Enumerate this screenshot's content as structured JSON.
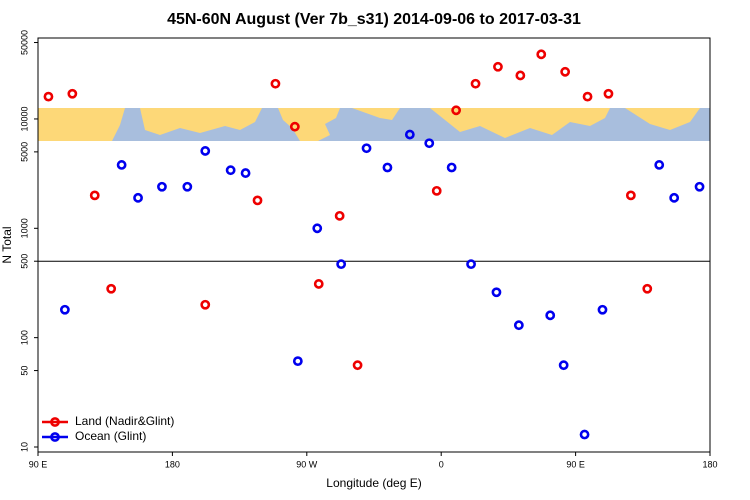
{
  "chart_data": {
    "type": "scatter",
    "title": "45N-60N August (Ver 7b_s31)   2014-09-06 to 2017-03-31",
    "x_label": "Longitude (deg E)",
    "y_label": "N Total",
    "xlim": [
      90,
      540
    ],
    "ylim": [
      9,
      55000
    ],
    "log_y": true,
    "hline": 500,
    "legend": "lower left",
    "xticks": [
      {
        "value": 90,
        "label": "90 E"
      },
      {
        "value": 180,
        "label": "180"
      },
      {
        "value": 270,
        "label": "90 W"
      },
      {
        "value": 360,
        "label": "0"
      },
      {
        "value": 450,
        "label": "90 E"
      },
      {
        "value": 540,
        "label": "180"
      }
    ],
    "yticks": [
      10,
      50,
      100,
      500,
      1000,
      5000,
      10000,
      50000
    ],
    "series": [
      {
        "name": "Land (Nadir&Glint)",
        "color": "#ee0000",
        "x": [
          97,
          113,
          128,
          139,
          202,
          237,
          249,
          262,
          278,
          292,
          304,
          357,
          370,
          383,
          398,
          413,
          427,
          443,
          458,
          472,
          487,
          498
        ],
        "values": [
          16000,
          17000,
          2000,
          280,
          200,
          1800,
          21000,
          8500,
          310,
          1300,
          56,
          2200,
          12000,
          21000,
          30000,
          25000,
          39000,
          27000,
          16000,
          17000,
          2000,
          280
        ]
      },
      {
        "name": "Ocean (Glint)",
        "color": "#0000ee",
        "x": [
          108,
          146,
          157,
          173,
          190,
          202,
          219,
          229,
          264,
          277,
          293,
          310,
          324,
          339,
          352,
          367,
          380,
          397,
          412,
          433,
          442,
          456,
          468,
          506,
          516,
          533
        ],
        "values": [
          180,
          3800,
          1900,
          2400,
          2400,
          5100,
          3400,
          3200,
          61,
          1000,
          470,
          5400,
          3600,
          7200,
          6000,
          3600,
          470,
          260,
          130,
          160,
          56,
          13,
          180,
          3800,
          1900,
          2400
        ]
      }
    ]
  }
}
